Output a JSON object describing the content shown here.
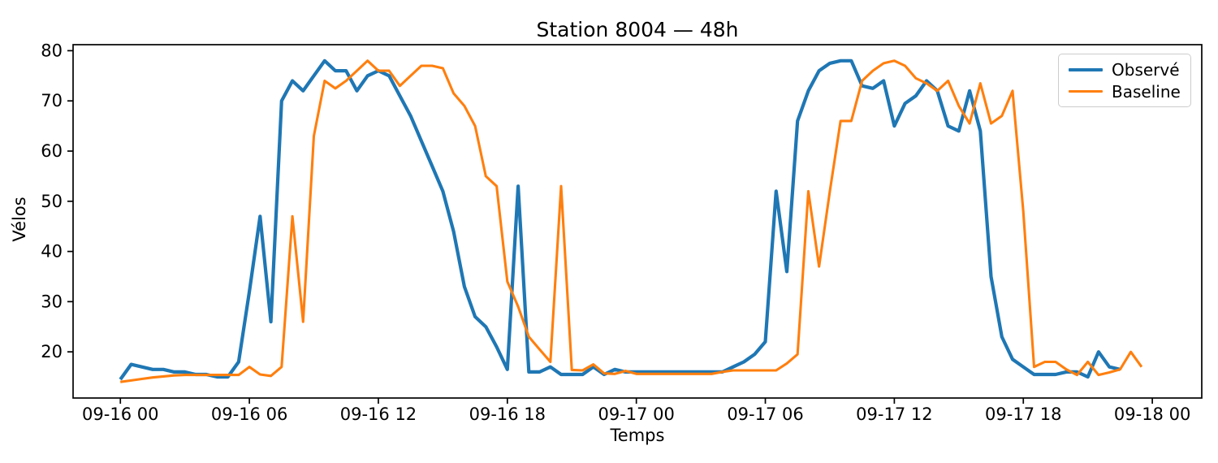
{
  "chart_data": {
    "type": "line",
    "title": "Station 8004 — 48h",
    "xlabel": "Temps",
    "ylabel": "Vélos",
    "grid": false,
    "legend_position": "upper right",
    "x_origin": "09-16 00:00",
    "x_start_hours": 0,
    "x_step_hours": 0.5,
    "xlim_hours": [
      -2.2,
      50.3
    ],
    "ylim": [
      10.8,
      81.2
    ],
    "x_ticks": [
      {
        "hours": 0,
        "label": "09-16 00"
      },
      {
        "hours": 6,
        "label": "09-16 06"
      },
      {
        "hours": 12,
        "label": "09-16 12"
      },
      {
        "hours": 18,
        "label": "09-16 18"
      },
      {
        "hours": 24,
        "label": "09-17 00"
      },
      {
        "hours": 30,
        "label": "09-17 06"
      },
      {
        "hours": 36,
        "label": "09-17 12"
      },
      {
        "hours": 42,
        "label": "09-17 18"
      },
      {
        "hours": 48,
        "label": "09-18 00"
      }
    ],
    "y_ticks": [
      20,
      30,
      40,
      50,
      60,
      70,
      80
    ],
    "series": [
      {
        "name": "Observé",
        "color": "#1f77b4",
        "linewidth": 4.2,
        "values": [
          14.5,
          17.5,
          17,
          16.5,
          16.5,
          16,
          16,
          15.5,
          15.5,
          15,
          15,
          18,
          32,
          47,
          26,
          70,
          74,
          72,
          75,
          78,
          76,
          76,
          72,
          75,
          76,
          75,
          71,
          67,
          62,
          57,
          52,
          44,
          33,
          27,
          25,
          21,
          16.5,
          53,
          16,
          16,
          17,
          15.5,
          15.5,
          15.5,
          17,
          15.5,
          16.5,
          16,
          16,
          16,
          16,
          16,
          16,
          16,
          16,
          16,
          16,
          17,
          18,
          19.5,
          22,
          52,
          36,
          66,
          72,
          76,
          77.5,
          78,
          78,
          73,
          72.5,
          74,
          65,
          69.5,
          71,
          74,
          72,
          65,
          64,
          72,
          64,
          35,
          23,
          18.5,
          17,
          15.5,
          15.5,
          15.5,
          16,
          16,
          15,
          20,
          17,
          16.5,
          null,
          null
        ]
      },
      {
        "name": "Baseline",
        "color": "#ff7f0e",
        "linewidth": 3.1,
        "values": [
          14,
          14.3,
          14.6,
          14.9,
          15.1,
          15.3,
          15.4,
          15.4,
          15.4,
          15.4,
          15.4,
          15.4,
          17,
          15.5,
          15.2,
          17,
          47,
          26,
          63,
          74,
          72.5,
          74,
          76,
          78,
          76,
          76,
          73,
          75,
          77,
          77,
          76.5,
          71.5,
          69,
          65,
          55,
          53,
          34,
          29,
          23,
          20.5,
          18,
          53,
          16.4,
          16.3,
          17.5,
          15.7,
          15.6,
          16.2,
          15.6,
          15.6,
          15.6,
          15.6,
          15.6,
          15.6,
          15.6,
          15.6,
          16,
          16.3,
          16.3,
          16.3,
          16.3,
          16.3,
          17.7,
          19.5,
          52,
          37,
          52,
          66,
          66,
          74,
          76,
          77.5,
          78,
          77,
          74.5,
          73.5,
          72,
          74,
          69,
          65.5,
          73.5,
          65.5,
          67,
          72,
          48,
          17,
          18,
          18,
          16.5,
          15.4,
          18,
          15.4,
          15.9,
          16.5,
          20,
          17
        ]
      }
    ],
    "axis_color": "#000000",
    "background_color": "#ffffff"
  }
}
